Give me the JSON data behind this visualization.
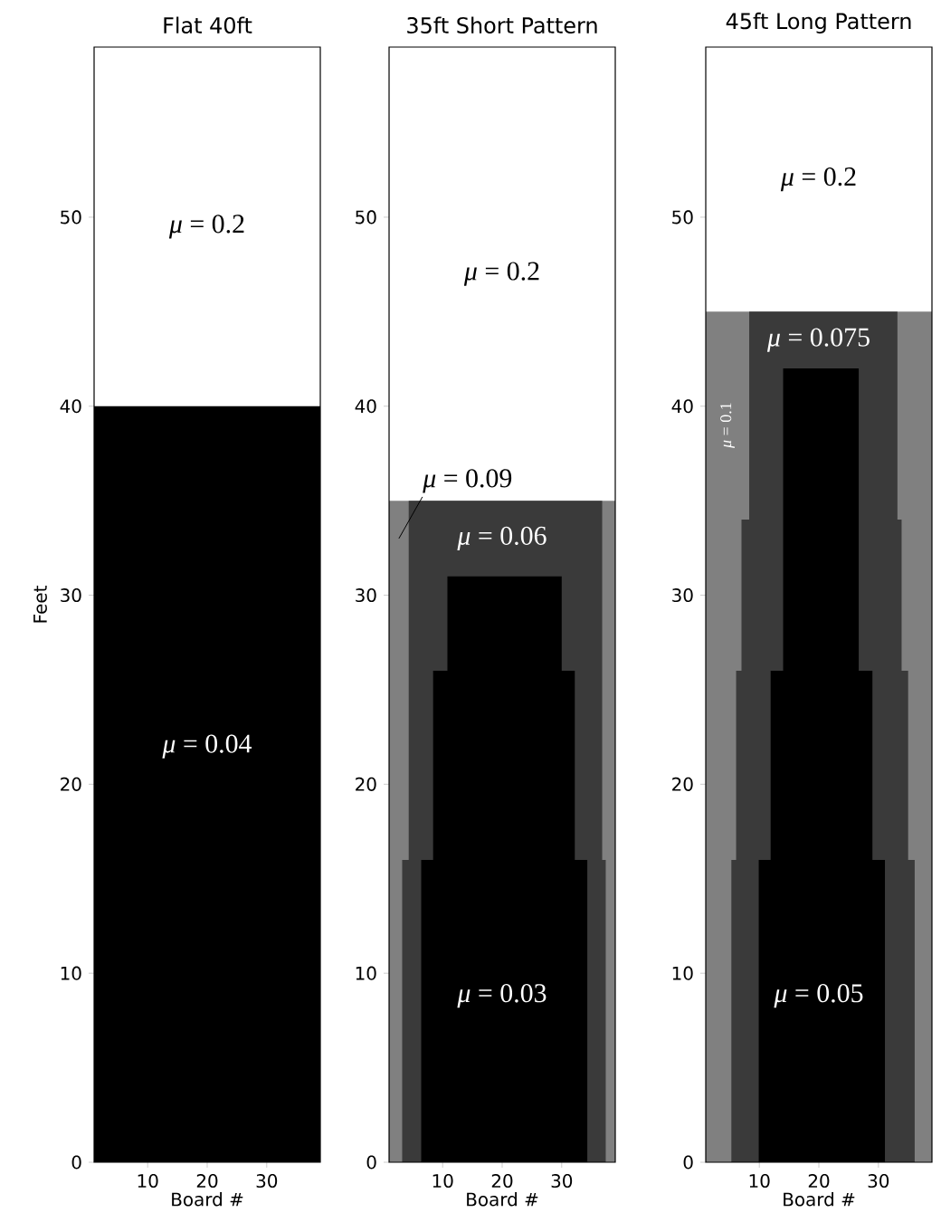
{
  "chart_data": [
    {
      "type": "area",
      "title": "Flat 40ft",
      "xlabel": "Board #",
      "ylabel": "Feet",
      "xlim": [
        1,
        39
      ],
      "ylim": [
        0,
        59
      ],
      "xticks": [
        10,
        20,
        30
      ],
      "yticks": [
        0,
        10,
        20,
        30,
        40,
        50
      ],
      "series": [
        {
          "color": "#000000",
          "x": [
            1,
            1,
            39,
            39
          ],
          "values": [
            0,
            40,
            40,
            0
          ]
        }
      ],
      "annotations": [
        "*μ* = 0.2",
        "*μ* = 0.04"
      ]
    },
    {
      "type": "area",
      "title": "35ft Short Pattern",
      "xlabel": "Board #",
      "xlim": [
        1,
        39
      ],
      "ylim": [
        0,
        59
      ],
      "xticks": [
        10,
        20,
        30
      ],
      "yticks": [
        0,
        10,
        20,
        30,
        40,
        50
      ],
      "series": [
        {
          "color": "#808080",
          "x": [
            1,
            1,
            39,
            39
          ],
          "values": [
            0,
            35,
            35,
            0
          ]
        },
        {
          "color": "#3a3a3a",
          "x": [
            3.2,
            3.2,
            4.3,
            4.3,
            36.8,
            36.8,
            37.4,
            37.4
          ],
          "values": [
            0,
            16,
            16,
            35,
            35,
            16,
            16,
            0
          ]
        },
        {
          "color": "#000000",
          "x": [
            6.4,
            6.4,
            8.4,
            8.4,
            10.8,
            10.8,
            30,
            30,
            32.2,
            32.2,
            34.3,
            34.3
          ],
          "values": [
            0,
            16,
            16,
            26,
            26,
            31,
            31,
            26,
            26,
            16,
            16,
            0
          ]
        }
      ],
      "annotations": [
        "*μ* = 0.2",
        "*μ* = 0.09",
        "*μ* = 0.06",
        "*μ* = 0.03"
      ]
    },
    {
      "type": "area",
      "title": "45ft Long Pattern",
      "xlabel": "Board #",
      "xlim": [
        1,
        39
      ],
      "ylim": [
        0,
        59
      ],
      "xticks": [
        10,
        20,
        30
      ],
      "yticks": [
        0,
        10,
        20,
        30,
        40,
        50
      ],
      "series": [
        {
          "color": "#808080",
          "x": [
            1,
            1,
            39,
            39
          ],
          "values": [
            0,
            45,
            45,
            0
          ]
        },
        {
          "color": "#3a3a3a",
          "x": [
            5.3,
            5.3,
            6.1,
            6.1,
            7,
            7,
            8.3,
            8.3,
            33.2,
            33.2,
            33.9,
            33.9,
            35,
            35,
            36.1,
            36.1
          ],
          "values": [
            0,
            16,
            16,
            26,
            26,
            34,
            34,
            45,
            45,
            34,
            34,
            26,
            26,
            16,
            16,
            0
          ]
        },
        {
          "color": "#000000",
          "x": [
            9.9,
            9.9,
            11.9,
            11.9,
            14,
            14,
            26.7,
            26.7,
            29,
            29,
            31.1,
            31.1
          ],
          "values": [
            0,
            16,
            16,
            26,
            26,
            42,
            42,
            26,
            26,
            16,
            16,
            0
          ]
        }
      ],
      "annotations": [
        "*μ* = 0.2",
        "*μ* = 0.1",
        "*μ* = 0.075",
        "*μ* = 0.05"
      ]
    }
  ]
}
